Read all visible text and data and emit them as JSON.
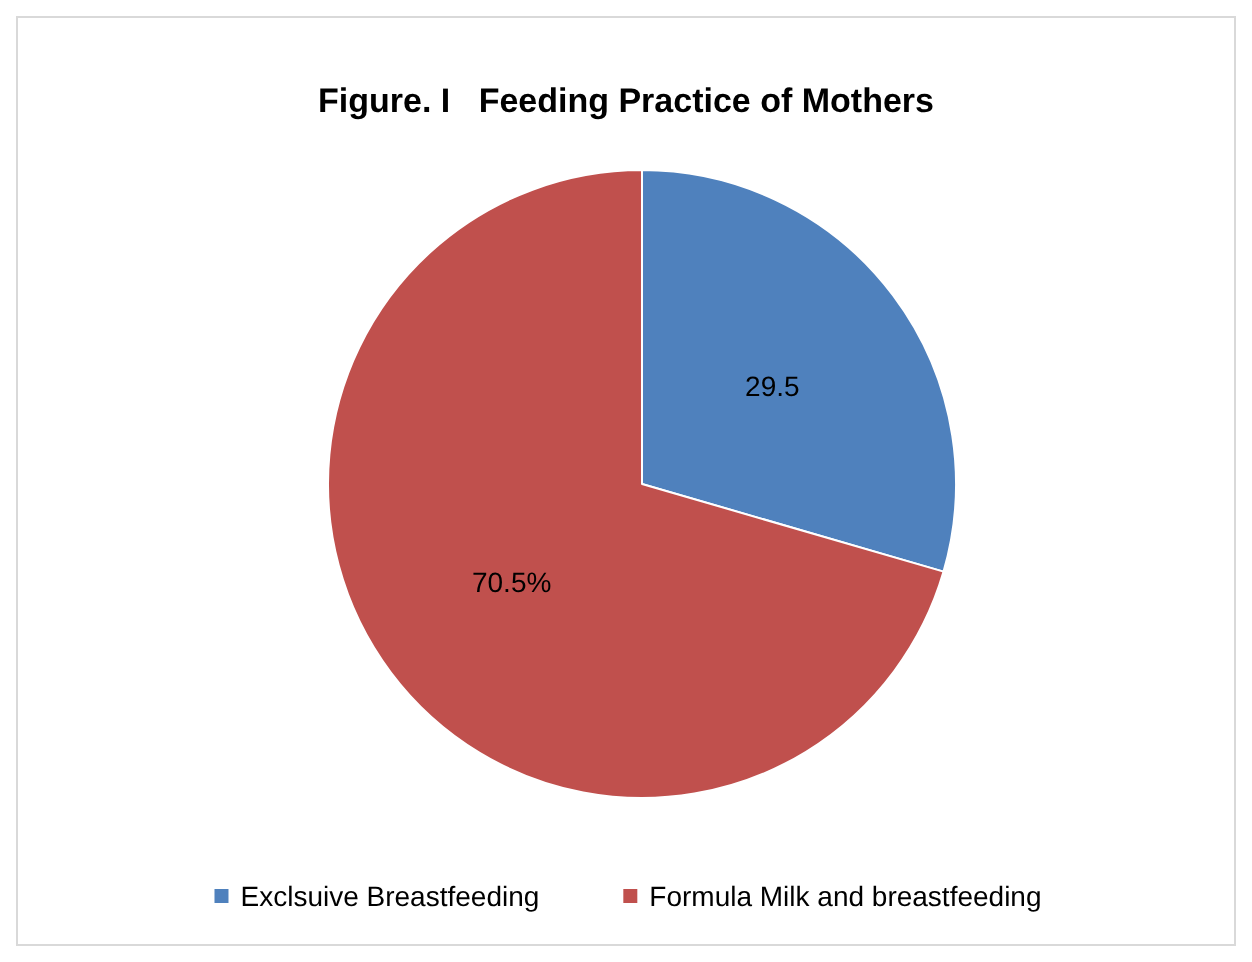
{
  "chart_data": {
    "type": "pie",
    "title": "Figure. I   Feeding Practice of Mothers",
    "categories": [
      "Exclsuive Breastfeeding",
      "Formula Milk and breastfeeding"
    ],
    "values": [
      29.5,
      70.5
    ],
    "colors": [
      "#4f81bd",
      "#c0504d"
    ],
    "value_labels": [
      "29.5",
      "70.5%"
    ],
    "legend": "bottom"
  }
}
